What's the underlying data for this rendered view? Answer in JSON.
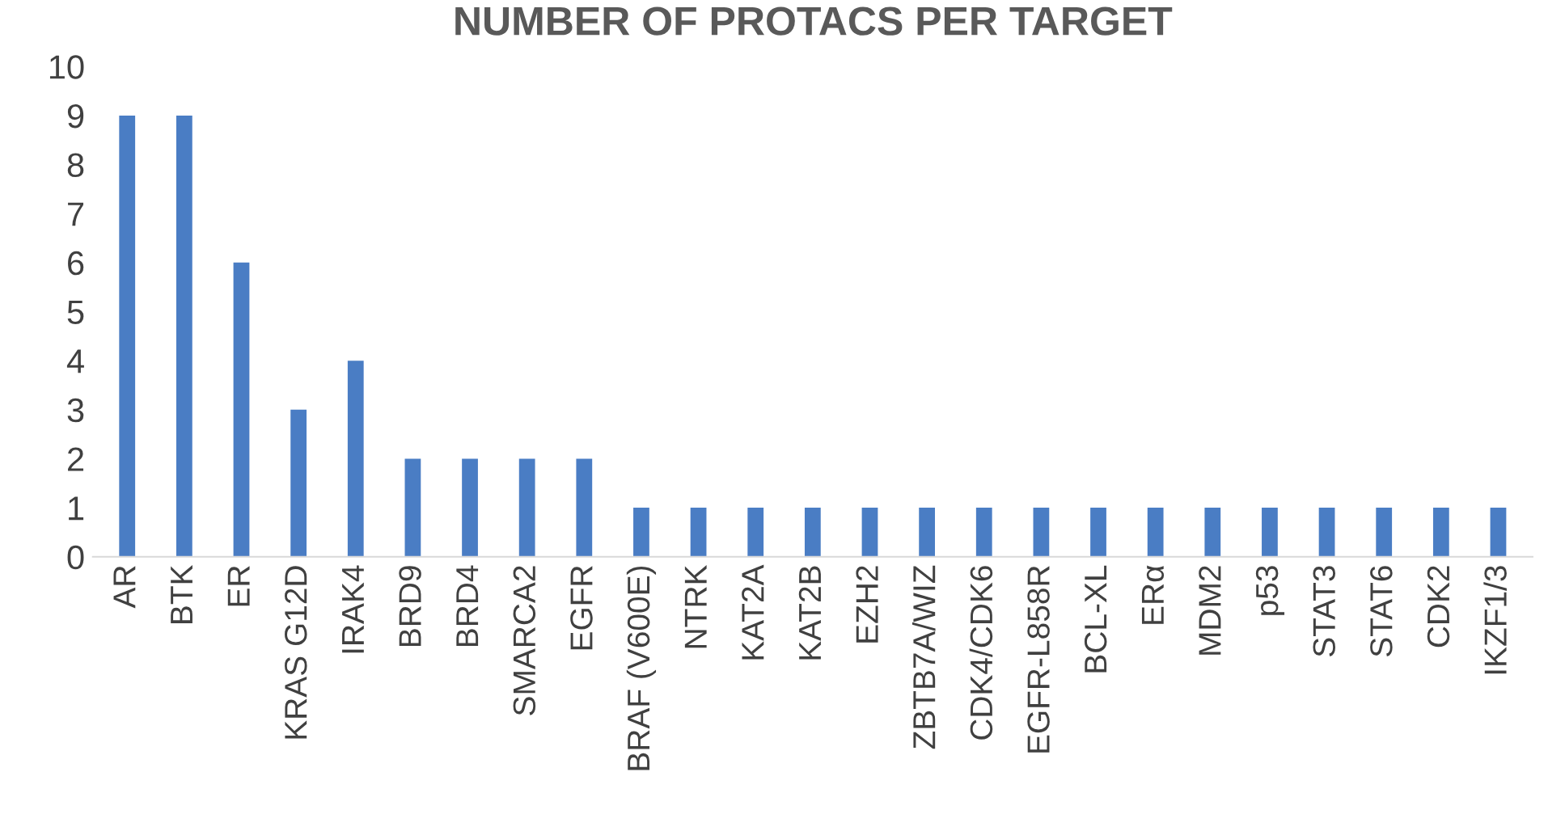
{
  "chart_data": {
    "type": "bar",
    "title": "NUMBER OF PROTACS PER TARGET",
    "categories": [
      "AR",
      "BTK",
      "ER",
      "KRAS G12D",
      "IRAK4",
      "BRD9",
      "BRD4",
      "SMARCA2",
      "EGFR",
      "BRAF (V600E)",
      "NTRK",
      "KAT2A",
      "KAT2B",
      "EZH2",
      "ZBTB7A/WIZ",
      "CDK4/CDK6",
      "EGFR-L858R",
      "BCL-XL",
      "ERα",
      "MDM2",
      "p53",
      "STAT3",
      "STAT6",
      "CDK2",
      "IKZF1/3"
    ],
    "values": [
      9,
      9,
      6,
      3,
      4,
      2,
      2,
      2,
      2,
      1,
      1,
      1,
      1,
      1,
      1,
      1,
      1,
      1,
      1,
      1,
      1,
      1,
      1,
      1,
      1
    ],
    "color": "#4a7dc4",
    "ylim": [
      0,
      10
    ],
    "yticks": [
      0,
      1,
      2,
      3,
      4,
      5,
      6,
      7,
      8,
      9,
      10
    ],
    "grid": false,
    "legend": false
  }
}
